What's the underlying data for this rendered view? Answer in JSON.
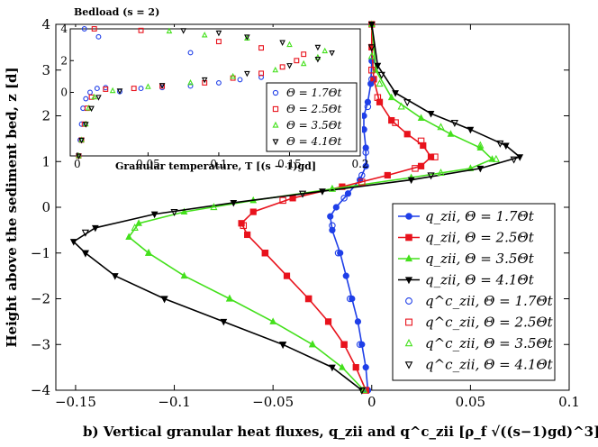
{
  "chart_data": [
    {
      "type": "line",
      "name": "main",
      "xlabel": "b) Vertical granular heat fluxes, q_zii and q^c_zii [ρ_f √((s−1)gd)^3]",
      "ylabel": "Height above the sediment bed, z [d]",
      "xlim": [
        -0.16,
        0.1
      ],
      "ylim": [
        -4,
        4
      ],
      "xticks": [
        -0.15,
        -0.1,
        -0.05,
        0,
        0.05,
        0.1
      ],
      "xtick_labels": [
        "−0.15",
        "−0.1",
        "−0.05",
        "0",
        "0.05",
        "0.1"
      ],
      "yticks": [
        -4,
        -3,
        -2,
        -1,
        0,
        1,
        2,
        3,
        4
      ],
      "ytick_labels": [
        "−4",
        "−3",
        "−2",
        "−1",
        "0",
        "1",
        "2",
        "3",
        "4"
      ],
      "legend_position": "bottom-right",
      "series": [
        {
          "name": "q_zii, Θ = 1.7Θt",
          "legend_label": "q_zii, Θ = 1.7Θt",
          "color": "#1f3fe8",
          "marker": "circle-filled",
          "style": "line",
          "points": [
            [
              -0.002,
              -4
            ],
            [
              -0.003,
              -3.5
            ],
            [
              -0.005,
              -3
            ],
            [
              -0.007,
              -2.5
            ],
            [
              -0.01,
              -2
            ],
            [
              -0.013,
              -1.5
            ],
            [
              -0.016,
              -1
            ],
            [
              -0.02,
              -0.5
            ],
            [
              -0.021,
              -0.2
            ],
            [
              -0.018,
              0
            ],
            [
              -0.012,
              0.3
            ],
            [
              -0.006,
              0.6
            ],
            [
              -0.003,
              0.9
            ],
            [
              -0.003,
              1.3
            ],
            [
              -0.004,
              1.7
            ],
            [
              -0.004,
              2.0
            ],
            [
              -0.002,
              2.3
            ],
            [
              -0.0005,
              2.7
            ],
            [
              0,
              3.2
            ],
            [
              0,
              4
            ]
          ]
        },
        {
          "name": "q_zii, Θ = 2.5Θt",
          "legend_label": "q_zii, Θ = 2.5Θt",
          "color": "#e8121c",
          "marker": "square-filled",
          "style": "line",
          "points": [
            [
              -0.003,
              -4
            ],
            [
              -0.008,
              -3.5
            ],
            [
              -0.014,
              -3
            ],
            [
              -0.022,
              -2.5
            ],
            [
              -0.032,
              -2
            ],
            [
              -0.043,
              -1.5
            ],
            [
              -0.054,
              -1
            ],
            [
              -0.063,
              -0.6
            ],
            [
              -0.066,
              -0.35
            ],
            [
              -0.06,
              -0.1
            ],
            [
              -0.04,
              0.2
            ],
            [
              -0.015,
              0.45
            ],
            [
              0.008,
              0.7
            ],
            [
              0.025,
              0.9
            ],
            [
              0.03,
              1.1
            ],
            [
              0.026,
              1.35
            ],
            [
              0.018,
              1.6
            ],
            [
              0.01,
              1.9
            ],
            [
              0.004,
              2.3
            ],
            [
              0.001,
              2.8
            ],
            [
              0,
              3.5
            ],
            [
              0,
              4
            ]
          ]
        },
        {
          "name": "q_zii, Θ = 3.5Θt",
          "legend_label": "q_zii, Θ = 3.5Θt",
          "color": "#44e01c",
          "marker": "triangle-up-filled",
          "style": "line",
          "points": [
            [
              -0.004,
              -4
            ],
            [
              -0.015,
              -3.5
            ],
            [
              -0.03,
              -3
            ],
            [
              -0.05,
              -2.5
            ],
            [
              -0.072,
              -2
            ],
            [
              -0.095,
              -1.5
            ],
            [
              -0.113,
              -1
            ],
            [
              -0.123,
              -0.65
            ],
            [
              -0.118,
              -0.35
            ],
            [
              -0.095,
              -0.1
            ],
            [
              -0.06,
              0.15
            ],
            [
              -0.02,
              0.4
            ],
            [
              0.02,
              0.65
            ],
            [
              0.05,
              0.85
            ],
            [
              0.061,
              1.05
            ],
            [
              0.055,
              1.3
            ],
            [
              0.04,
              1.6
            ],
            [
              0.025,
              1.95
            ],
            [
              0.01,
              2.4
            ],
            [
              0.002,
              3.0
            ],
            [
              0,
              4
            ]
          ]
        },
        {
          "name": "q_zii, Θ = 4.1Θt",
          "legend_label": "q_zii, Θ = 4.1Θt",
          "color": "#000000",
          "marker": "triangle-down-filled",
          "style": "line",
          "points": [
            [
              -0.005,
              -4
            ],
            [
              -0.02,
              -3.5
            ],
            [
              -0.045,
              -3
            ],
            [
              -0.075,
              -2.5
            ],
            [
              -0.105,
              -2
            ],
            [
              -0.13,
              -1.5
            ],
            [
              -0.145,
              -1
            ],
            [
              -0.151,
              -0.75
            ],
            [
              -0.14,
              -0.45
            ],
            [
              -0.11,
              -0.15
            ],
            [
              -0.07,
              0.1
            ],
            [
              -0.025,
              0.35
            ],
            [
              0.02,
              0.6
            ],
            [
              0.055,
              0.85
            ],
            [
              0.075,
              1.1
            ],
            [
              0.068,
              1.35
            ],
            [
              0.05,
              1.7
            ],
            [
              0.03,
              2.05
            ],
            [
              0.012,
              2.5
            ],
            [
              0.003,
              3.1
            ],
            [
              0,
              4
            ]
          ]
        },
        {
          "name": "q^c_zii, Θ = 1.7Θt",
          "legend_label": "q^c_zii, Θ = 1.7Θt",
          "color": "#1f3fe8",
          "marker": "circle-open",
          "style": "markers",
          "points": [
            [
              -0.002,
              -4
            ],
            [
              -0.006,
              -3
            ],
            [
              -0.011,
              -2
            ],
            [
              -0.017,
              -1
            ],
            [
              -0.02,
              -0.4
            ],
            [
              -0.014,
              0.2
            ],
            [
              -0.005,
              0.7
            ],
            [
              -0.003,
              1.2
            ],
            [
              -0.004,
              1.7
            ],
            [
              -0.002,
              2.2
            ],
            [
              0,
              2.8
            ]
          ]
        },
        {
          "name": "q^c_zii, Θ = 2.5Θt",
          "legend_label": "q^c_zii, Θ = 2.5Θt",
          "color": "#e8121c",
          "marker": "square-open",
          "style": "markers",
          "points": [
            [
              -0.003,
              -4
            ],
            [
              -0.014,
              -3
            ],
            [
              -0.032,
              -2
            ],
            [
              -0.054,
              -1
            ],
            [
              -0.065,
              -0.4
            ],
            [
              -0.045,
              0.15
            ],
            [
              -0.005,
              0.55
            ],
            [
              0.022,
              0.85
            ],
            [
              0.032,
              1.1
            ],
            [
              0.025,
              1.45
            ],
            [
              0.012,
              1.85
            ],
            [
              0.003,
              2.4
            ],
            [
              0,
              3
            ]
          ]
        },
        {
          "name": "q^c_zii, Θ = 3.5Θt",
          "legend_label": "q^c_zii, Θ = 3.5Θt",
          "color": "#44e01c",
          "marker": "triangle-up-open",
          "style": "markers",
          "points": [
            [
              -0.004,
              -4
            ],
            [
              -0.03,
              -3
            ],
            [
              -0.072,
              -2
            ],
            [
              -0.113,
              -1
            ],
            [
              -0.12,
              -0.45
            ],
            [
              -0.08,
              0.0
            ],
            [
              -0.02,
              0.4
            ],
            [
              0.035,
              0.75
            ],
            [
              0.063,
              1.05
            ],
            [
              0.055,
              1.35
            ],
            [
              0.035,
              1.75
            ],
            [
              0.015,
              2.2
            ],
            [
              0.004,
              2.7
            ],
            [
              0,
              3.3
            ]
          ]
        },
        {
          "name": "q^c_zii, Θ = 4.1Θt",
          "legend_label": "q^c_zii, Θ = 4.1Θt",
          "color": "#000000",
          "marker": "triangle-down-open",
          "style": "markers",
          "points": [
            [
              -0.005,
              -4
            ],
            [
              -0.045,
              -3
            ],
            [
              -0.105,
              -2
            ],
            [
              -0.145,
              -1
            ],
            [
              -0.145,
              -0.55
            ],
            [
              -0.1,
              -0.1
            ],
            [
              -0.035,
              0.3
            ],
            [
              0.03,
              0.7
            ],
            [
              0.072,
              1.05
            ],
            [
              0.065,
              1.4
            ],
            [
              0.042,
              1.85
            ],
            [
              0.018,
              2.3
            ],
            [
              0.005,
              2.9
            ],
            [
              0,
              3.5
            ]
          ]
        }
      ]
    },
    {
      "type": "scatter",
      "name": "inset",
      "title": "Bedload (s = 2)",
      "xlabel": "Granular temperature, T [(s − 1)gd]",
      "ylabel": "",
      "xlim": [
        -0.005,
        0.2
      ],
      "ylim": [
        -4,
        4
      ],
      "xticks": [
        0,
        0.05,
        0.1,
        0.15,
        0.2
      ],
      "xtick_labels": [
        "0",
        "0.05",
        "0.1",
        "0.15",
        "0.2"
      ],
      "yticks": [
        0,
        2,
        4
      ],
      "ytick_labels": [
        "0",
        "2",
        "4"
      ],
      "legend_position": "bottom-right",
      "series": [
        {
          "name": "Θ = 1.7Θt",
          "legend_label": "Θ = 1.7Θt",
          "color": "#1f3fe8",
          "marker": "circle-open",
          "points": [
            [
              0.001,
              -4
            ],
            [
              0.002,
              -3
            ],
            [
              0.003,
              -2
            ],
            [
              0.004,
              -1
            ],
            [
              0.006,
              -0.4
            ],
            [
              0.009,
              0
            ],
            [
              0.014,
              0.25
            ],
            [
              0.02,
              0.3
            ],
            [
              0.03,
              0.05
            ],
            [
              0.045,
              0.25
            ],
            [
              0.06,
              0.3
            ],
            [
              0.08,
              0.4
            ],
            [
              0.1,
              0.6
            ],
            [
              0.115,
              0.8
            ],
            [
              0.13,
              0.95
            ],
            [
              0.08,
              2.5
            ],
            [
              0.015,
              3.5
            ],
            [
              0.005,
              4
            ]
          ]
        },
        {
          "name": "Θ = 2.5Θt",
          "legend_label": "Θ = 2.5Θt",
          "color": "#e8121c",
          "marker": "square-open",
          "points": [
            [
              0.001,
              -4
            ],
            [
              0.003,
              -3
            ],
            [
              0.005,
              -2
            ],
            [
              0.007,
              -1
            ],
            [
              0.01,
              -0.3
            ],
            [
              0.02,
              0.2
            ],
            [
              0.04,
              0.25
            ],
            [
              0.06,
              0.4
            ],
            [
              0.09,
              0.6
            ],
            [
              0.11,
              0.9
            ],
            [
              0.13,
              1.2
            ],
            [
              0.145,
              1.6
            ],
            [
              0.155,
              2.0
            ],
            [
              0.16,
              2.4
            ],
            [
              0.13,
              2.8
            ],
            [
              0.1,
              3.2
            ],
            [
              0.045,
              3.9
            ],
            [
              0.012,
              4
            ]
          ]
        },
        {
          "name": "Θ = 3.5Θt",
          "legend_label": "Θ = 3.5Θt",
          "color": "#44e01c",
          "marker": "triangle-up-open",
          "points": [
            [
              0.001,
              -4
            ],
            [
              0.003,
              -3
            ],
            [
              0.006,
              -2
            ],
            [
              0.008,
              -1
            ],
            [
              0.012,
              -0.3
            ],
            [
              0.025,
              0.1
            ],
            [
              0.05,
              0.35
            ],
            [
              0.08,
              0.6
            ],
            [
              0.11,
              1.0
            ],
            [
              0.14,
              1.4
            ],
            [
              0.16,
              1.8
            ],
            [
              0.17,
              2.2
            ],
            [
              0.175,
              2.6
            ],
            [
              0.15,
              3.0
            ],
            [
              0.12,
              3.4
            ],
            [
              0.09,
              3.6
            ],
            [
              0.065,
              3.85
            ]
          ]
        },
        {
          "name": "Θ = 4.1Θt",
          "legend_label": "Θ = 4.1Θt",
          "color": "#000000",
          "marker": "triangle-down-open",
          "points": [
            [
              0.001,
              -4
            ],
            [
              0.003,
              -3
            ],
            [
              0.006,
              -2
            ],
            [
              0.01,
              -1
            ],
            [
              0.015,
              -0.3
            ],
            [
              0.03,
              0.1
            ],
            [
              0.06,
              0.45
            ],
            [
              0.09,
              0.8
            ],
            [
              0.12,
              1.2
            ],
            [
              0.15,
              1.7
            ],
            [
              0.17,
              2.1
            ],
            [
              0.18,
              2.5
            ],
            [
              0.17,
              2.85
            ],
            [
              0.145,
              3.15
            ],
            [
              0.12,
              3.5
            ],
            [
              0.1,
              3.75
            ],
            [
              0.075,
              3.9
            ]
          ]
        }
      ]
    }
  ]
}
